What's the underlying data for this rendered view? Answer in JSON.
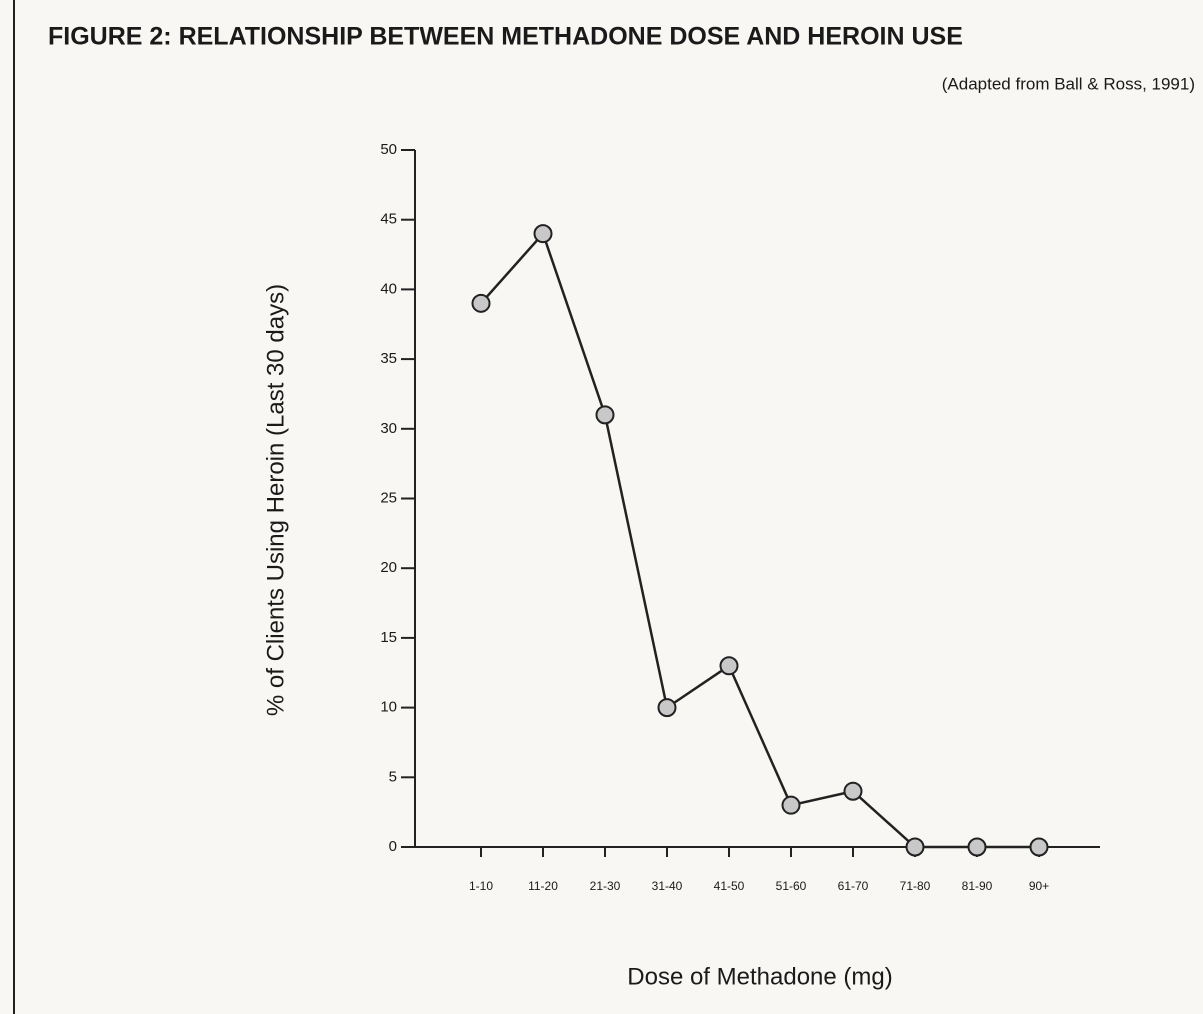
{
  "chart_data": {
    "type": "line",
    "title": "FIGURE 2: RELATIONSHIP BETWEEN METHADONE DOSE AND HEROIN USE",
    "subtitle": "(Adapted from Ball & Ross, 1991)",
    "x_label": "Dose of Methadone (mg)",
    "y_label": "% of Clients Using Heroin (Last 30 days)",
    "categories": [
      "1-10",
      "11-20",
      "21-30",
      "31-40",
      "41-50",
      "51-60",
      "61-70",
      "71-80",
      "81-90",
      "90+"
    ],
    "values": [
      39,
      44,
      31,
      10,
      13,
      3,
      4,
      0,
      0,
      0
    ],
    "color": "#222222",
    "marker_color": "#c8c8c8",
    "ylim": [
      0,
      50
    ],
    "yticks": [
      0,
      5,
      10,
      15,
      20,
      25,
      30,
      35,
      40,
      45,
      50
    ],
    "grid": false
  }
}
